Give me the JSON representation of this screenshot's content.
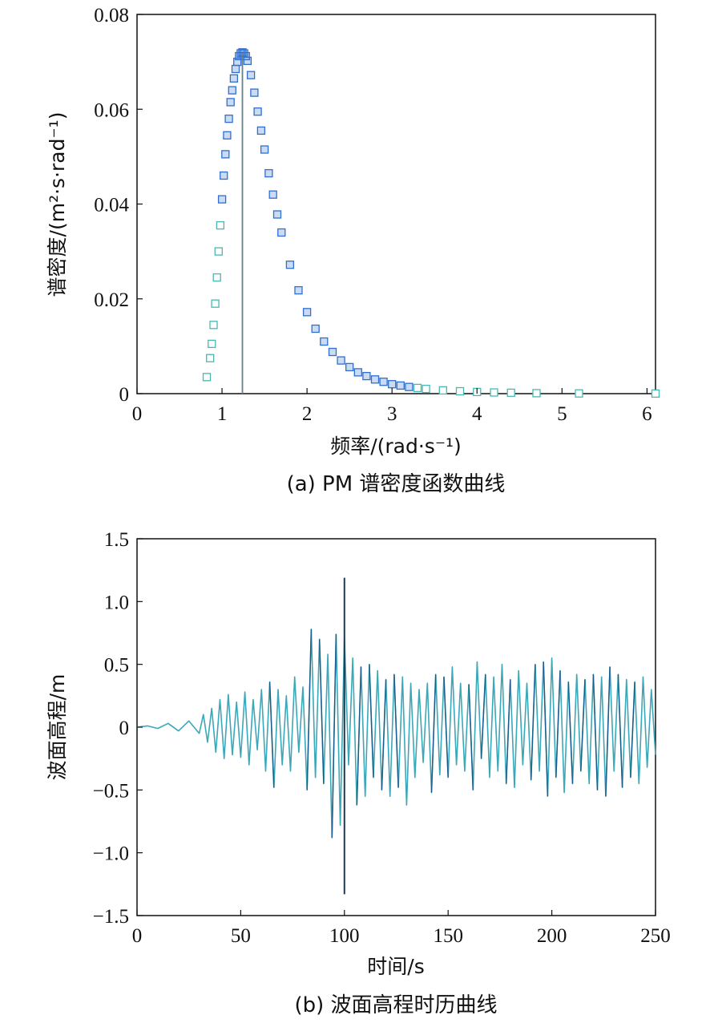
{
  "chart_data": [
    {
      "type": "scatter",
      "caption": "(a) PM 谱密度函数曲线",
      "xlabel": "频率/(rad·s⁻¹)",
      "ylabel": "谱密度/(m²·s·rad⁻¹)",
      "xlim": [
        0,
        6.1
      ],
      "ylim": [
        0,
        0.08
      ],
      "xticks": [
        "0",
        "1",
        "2",
        "3",
        "4",
        "5",
        "6"
      ],
      "yticks": [
        "0",
        "0.02",
        "0.04",
        "0.06",
        "0.08"
      ],
      "peak_marker_x": 1.24,
      "series": [
        {
          "color": "#2f6fd0",
          "sparse_color": "#48b8b0",
          "x": [
            0.82,
            0.86,
            0.88,
            0.9,
            0.92,
            0.94,
            0.96,
            0.98,
            1.0,
            1.02,
            1.04,
            1.06,
            1.08,
            1.1,
            1.12,
            1.14,
            1.16,
            1.18,
            1.2,
            1.22,
            1.24,
            1.26,
            1.28,
            1.3,
            1.34,
            1.38,
            1.42,
            1.46,
            1.5,
            1.55,
            1.6,
            1.65,
            1.7,
            1.8,
            1.9,
            2.0,
            2.1,
            2.2,
            2.3,
            2.4,
            2.5,
            2.6,
            2.7,
            2.8,
            2.9,
            3.0,
            3.1,
            3.2,
            3.3,
            3.4,
            3.6,
            3.8,
            4.0,
            4.2,
            4.4,
            4.7,
            5.2,
            6.1
          ],
          "y": [
            0.0035,
            0.0075,
            0.0105,
            0.0145,
            0.019,
            0.0245,
            0.03,
            0.0355,
            0.041,
            0.046,
            0.0505,
            0.0545,
            0.058,
            0.0615,
            0.064,
            0.0665,
            0.0685,
            0.07,
            0.0712,
            0.0718,
            0.072,
            0.0718,
            0.0712,
            0.0702,
            0.0672,
            0.0635,
            0.0595,
            0.0555,
            0.0515,
            0.0465,
            0.042,
            0.0378,
            0.034,
            0.0272,
            0.0218,
            0.0172,
            0.0137,
            0.011,
            0.0088,
            0.007,
            0.0056,
            0.0045,
            0.0037,
            0.003,
            0.0025,
            0.002,
            0.0017,
            0.0014,
            0.0012,
            0.001,
            0.0007,
            0.0005,
            0.00035,
            0.00025,
            0.00018,
            0.0001,
            5e-05,
            1e-05
          ]
        }
      ]
    },
    {
      "type": "line",
      "caption": "(b) 波面高程时历曲线",
      "xlabel": "时间/s",
      "ylabel": "波面高程/m",
      "xlim": [
        0,
        250
      ],
      "ylim": [
        -1.5,
        1.5
      ],
      "xticks": [
        "0",
        "50",
        "100",
        "150",
        "200",
        "250"
      ],
      "yticks": [
        "1.5",
        "1.0",
        "0.5",
        "0",
        "−0.5",
        "−1.0",
        "−1.5"
      ],
      "marker_line": {
        "x": 100,
        "y_top": 1.19,
        "y_bottom": -1.33
      },
      "series": [
        {
          "color": "#3aa8b8",
          "dark_color": "#1a5a8a",
          "x": [
            0,
            5,
            10,
            15,
            20,
            25,
            30,
            32,
            34,
            36,
            38,
            40,
            42,
            44,
            46,
            48,
            50,
            52,
            54,
            56,
            58,
            60,
            62,
            64,
            66,
            68,
            70,
            72,
            74,
            76,
            78,
            80,
            82,
            84,
            86,
            88,
            90,
            92,
            94,
            96,
            98,
            100,
            102,
            104,
            106,
            108,
            110,
            112,
            114,
            116,
            118,
            120,
            122,
            124,
            126,
            128,
            130,
            132,
            134,
            136,
            138,
            140,
            142,
            144,
            146,
            148,
            150,
            152,
            154,
            156,
            158,
            160,
            162,
            164,
            166,
            168,
            170,
            172,
            174,
            176,
            178,
            180,
            182,
            184,
            186,
            188,
            190,
            192,
            194,
            196,
            198,
            200,
            202,
            204,
            206,
            208,
            210,
            212,
            214,
            216,
            218,
            220,
            222,
            224,
            226,
            228,
            230,
            232,
            234,
            236,
            238,
            240,
            242,
            244,
            246,
            248,
            250
          ],
          "y": [
            0,
            0.01,
            -0.01,
            0.03,
            -0.03,
            0.05,
            -0.05,
            0.1,
            -0.12,
            0.15,
            -0.2,
            0.22,
            -0.25,
            0.26,
            -0.22,
            0.2,
            -0.24,
            0.28,
            -0.3,
            0.22,
            -0.18,
            0.3,
            -0.35,
            0.36,
            -0.48,
            0.3,
            -0.3,
            0.25,
            -0.35,
            0.4,
            -0.2,
            0.32,
            -0.5,
            0.78,
            -0.4,
            0.7,
            -0.45,
            0.58,
            -0.88,
            0.74,
            -0.78,
            0.72,
            -0.3,
            0.55,
            -0.62,
            0.48,
            -0.55,
            0.5,
            -0.4,
            0.45,
            -0.5,
            0.38,
            -0.55,
            0.42,
            -0.48,
            0.4,
            -0.62,
            0.35,
            -0.4,
            0.3,
            -0.28,
            0.35,
            -0.52,
            0.42,
            -0.38,
            0.4,
            -0.4,
            0.48,
            -0.3,
            0.35,
            -0.35,
            0.34,
            -0.5,
            0.52,
            -0.25,
            0.42,
            -0.4,
            0.4,
            -0.35,
            0.5,
            -0.45,
            0.38,
            -0.48,
            0.45,
            -0.3,
            0.35,
            -0.42,
            0.5,
            -0.35,
            0.52,
            -0.55,
            0.55,
            -0.4,
            0.45,
            -0.52,
            0.36,
            -0.45,
            0.42,
            -0.35,
            0.38,
            -0.45,
            0.42,
            -0.5,
            0.4,
            -0.55,
            0.48,
            -0.35,
            0.42,
            -0.48,
            0.38,
            -0.4,
            0.36,
            -0.45,
            0.4,
            -0.32,
            0.3,
            -0.22
          ]
        }
      ]
    }
  ]
}
